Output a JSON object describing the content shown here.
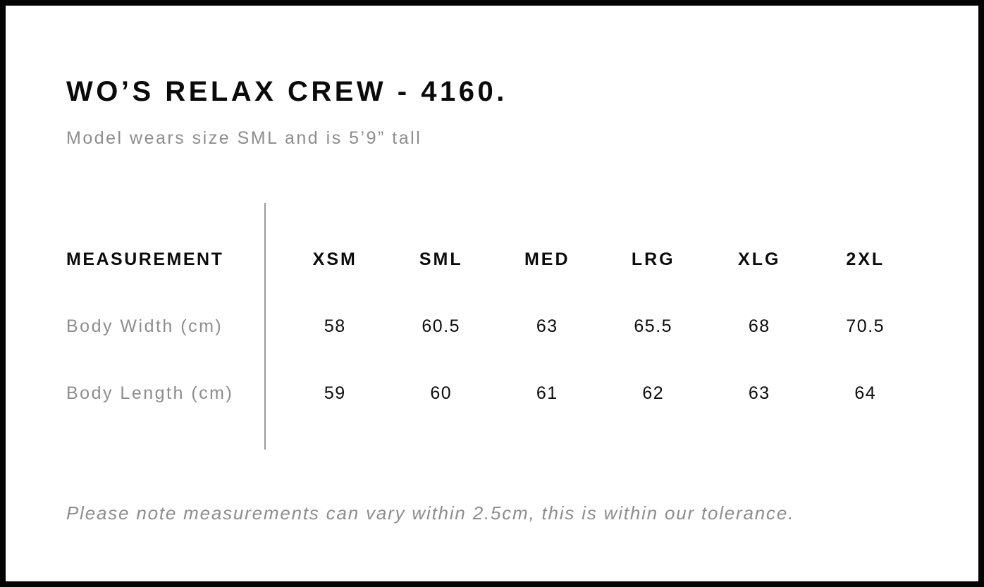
{
  "header": {
    "title": "WO’S RELAX CREW - 4160.",
    "subtitle": "Model wears size SML and is 5’9” tall"
  },
  "size_chart": {
    "columns": [
      "MEASUREMENT",
      "XSM",
      "SML",
      "MED",
      "LRG",
      "XLG",
      "2XL"
    ],
    "rows": [
      {
        "label": "Body Width (cm)",
        "values": [
          "58",
          "60.5",
          "63",
          "65.5",
          "68",
          "70.5"
        ]
      },
      {
        "label": "Body Length (cm)",
        "values": [
          "59",
          "60",
          "61",
          "62",
          "63",
          "64"
        ]
      }
    ]
  },
  "footer": {
    "note": "Please note measurements can vary within 2.5cm, this is within our tolerance."
  },
  "chart_data": {
    "type": "table",
    "title": "WO’S RELAX CREW - 4160.",
    "columns": [
      "MEASUREMENT",
      "XSM",
      "SML",
      "MED",
      "LRG",
      "XLG",
      "2XL"
    ],
    "rows": [
      [
        "Body Width (cm)",
        58,
        60.5,
        63,
        65.5,
        68,
        70.5
      ],
      [
        "Body Length (cm)",
        59,
        60,
        61,
        62,
        63,
        64
      ]
    ]
  },
  "colors": {
    "text_primary": "#0c0c0c",
    "text_muted": "#8d8d8d",
    "divider": "#9b9b9b",
    "border": "#040404",
    "background": "#ffffff"
  }
}
